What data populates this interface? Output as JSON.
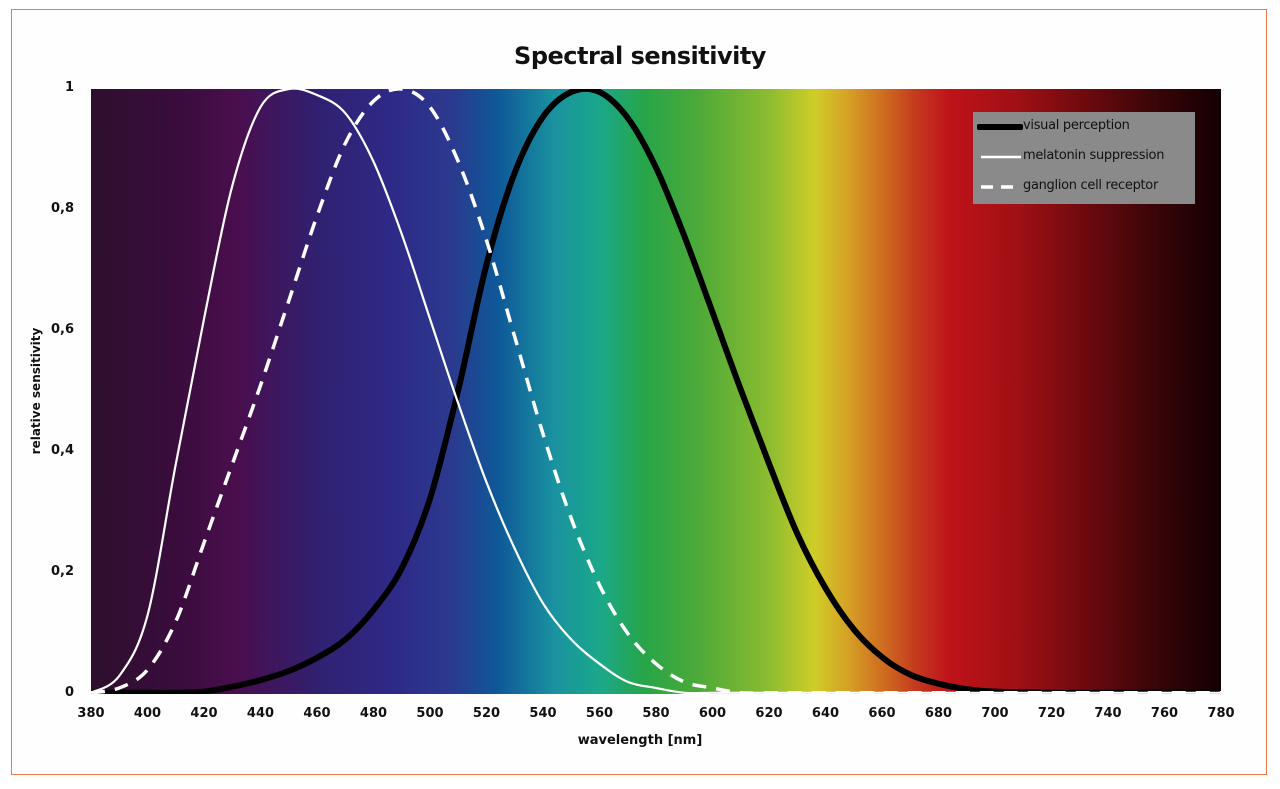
{
  "chart_data": {
    "type": "line",
    "title": "Spectral sensitivity",
    "xlabel": "wavelength [nm]",
    "ylabel": "relative sensitivity",
    "xlim": [
      380,
      780
    ],
    "ylim": [
      0,
      1
    ],
    "grid": false,
    "legend_position": "upper right",
    "x_ticks": [
      "380",
      "400",
      "420",
      "440",
      "460",
      "480",
      "500",
      "520",
      "540",
      "560",
      "580",
      "600",
      "620",
      "640",
      "660",
      "680",
      "700",
      "720",
      "740",
      "760",
      "780"
    ],
    "y_ticks": [
      "0",
      "0,2",
      "0,4",
      "0,6",
      "0,8",
      "1"
    ],
    "background": "visible spectrum gradient (violet to deep red)",
    "x": [
      380,
      390,
      400,
      410,
      420,
      430,
      440,
      450,
      460,
      470,
      480,
      490,
      500,
      510,
      520,
      530,
      540,
      550,
      560,
      570,
      580,
      590,
      600,
      610,
      620,
      630,
      640,
      650,
      660,
      670,
      680,
      690,
      700,
      720,
      740,
      760,
      780
    ],
    "series": [
      {
        "name": "visual perception",
        "style": "solid black thick",
        "color": "#000000",
        "values": [
          0.0,
          0.0,
          0.0,
          0.0,
          0.004,
          0.012,
          0.023,
          0.038,
          0.06,
          0.09,
          0.139,
          0.208,
          0.323,
          0.503,
          0.71,
          0.862,
          0.954,
          0.995,
          0.995,
          0.952,
          0.87,
          0.757,
          0.631,
          0.503,
          0.381,
          0.265,
          0.175,
          0.107,
          0.061,
          0.032,
          0.017,
          0.008,
          0.004,
          0.001,
          0.0,
          0.0,
          0.0
        ]
      },
      {
        "name": "melatonin suppression",
        "style": "solid white thin",
        "color": "#ffffff",
        "values": [
          0.0,
          0.03,
          0.13,
          0.38,
          0.62,
          0.84,
          0.97,
          1.0,
          0.99,
          0.96,
          0.88,
          0.76,
          0.62,
          0.48,
          0.35,
          0.24,
          0.15,
          0.09,
          0.05,
          0.02,
          0.01,
          0.0,
          0.0,
          0.0,
          0.0,
          0.0,
          0.0,
          0.0,
          0.0,
          0.0,
          0.0,
          0.0,
          0.0,
          0.0,
          0.0,
          0.0,
          0.0
        ]
      },
      {
        "name": "ganglion cell receptor",
        "style": "dashed white",
        "color": "#ffffff",
        "values": [
          0.0,
          0.01,
          0.04,
          0.12,
          0.25,
          0.38,
          0.51,
          0.65,
          0.79,
          0.91,
          0.98,
          1.0,
          0.97,
          0.88,
          0.75,
          0.59,
          0.43,
          0.29,
          0.18,
          0.1,
          0.05,
          0.02,
          0.01,
          0.0,
          0.0,
          0.0,
          0.0,
          0.0,
          0.0,
          0.0,
          0.0,
          0.0,
          0.0,
          0.0,
          0.0,
          0.0,
          0.0
        ]
      }
    ]
  },
  "colors": {
    "frame_border": "#ee7a4a",
    "legend_bg": "#8a8a8a"
  }
}
